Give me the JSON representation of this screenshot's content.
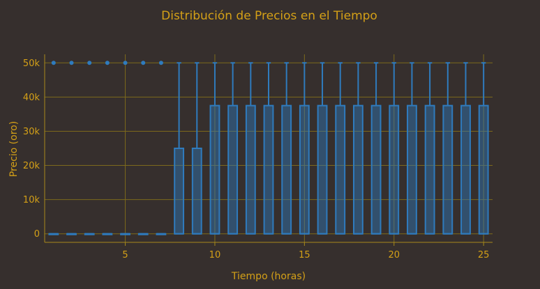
{
  "chart_data": {
    "type": "box",
    "title": "Distribución de Precios en el Tiempo",
    "xlabel": "Tiempo (horas)",
    "ylabel": "Precio (oro)",
    "xlim": [
      0.5,
      25.5
    ],
    "ylim": [
      -2500,
      52500
    ],
    "x_ticks": [
      {
        "value": 5,
        "label": "5"
      },
      {
        "value": 10,
        "label": "10"
      },
      {
        "value": 15,
        "label": "15"
      },
      {
        "value": 20,
        "label": "20"
      },
      {
        "value": 25,
        "label": "25"
      }
    ],
    "y_ticks": [
      {
        "value": 0,
        "label": "0"
      },
      {
        "value": 10000,
        "label": "10k"
      },
      {
        "value": 20000,
        "label": "20k"
      },
      {
        "value": 30000,
        "label": "30k"
      },
      {
        "value": 40000,
        "label": "40k"
      },
      {
        "value": 50000,
        "label": "50k"
      }
    ],
    "grid": true,
    "colors": {
      "background": "#362f2d",
      "text": "#d4a017",
      "grid": "#7d6a1c",
      "box_stroke": "#2f7bbd",
      "box_fill": "#2f7bbd"
    },
    "boxes": [
      {
        "x": 1,
        "min": 0,
        "q1": 0,
        "median": 0,
        "q3": 0,
        "max": 0,
        "outliers": [
          50000
        ]
      },
      {
        "x": 2,
        "min": 0,
        "q1": 0,
        "median": 0,
        "q3": 0,
        "max": 0,
        "outliers": [
          50000
        ]
      },
      {
        "x": 3,
        "min": 0,
        "q1": 0,
        "median": 0,
        "q3": 0,
        "max": 0,
        "outliers": [
          50000
        ]
      },
      {
        "x": 4,
        "min": 0,
        "q1": 0,
        "median": 0,
        "q3": 0,
        "max": 0,
        "outliers": [
          50000
        ]
      },
      {
        "x": 5,
        "min": 0,
        "q1": 0,
        "median": 0,
        "q3": 0,
        "max": 0,
        "outliers": [
          50000
        ]
      },
      {
        "x": 6,
        "min": 0,
        "q1": 0,
        "median": 0,
        "q3": 0,
        "max": 0,
        "outliers": [
          50000
        ]
      },
      {
        "x": 7,
        "min": 0,
        "q1": 0,
        "median": 0,
        "q3": 0,
        "max": 0,
        "outliers": [
          50000
        ]
      },
      {
        "x": 8,
        "min": 0,
        "q1": 0,
        "median": 0,
        "q3": 25000,
        "max": 50000,
        "outliers": []
      },
      {
        "x": 9,
        "min": 0,
        "q1": 0,
        "median": 0,
        "q3": 25000,
        "max": 50000,
        "outliers": []
      },
      {
        "x": 10,
        "min": 0,
        "q1": 0,
        "median": 0,
        "q3": 37500,
        "max": 50000,
        "outliers": []
      },
      {
        "x": 11,
        "min": 0,
        "q1": 0,
        "median": 0,
        "q3": 37500,
        "max": 50000,
        "outliers": []
      },
      {
        "x": 12,
        "min": 0,
        "q1": 0,
        "median": 0,
        "q3": 37500,
        "max": 50000,
        "outliers": []
      },
      {
        "x": 13,
        "min": 0,
        "q1": 0,
        "median": 0,
        "q3": 37500,
        "max": 50000,
        "outliers": []
      },
      {
        "x": 14,
        "min": 0,
        "q1": 0,
        "median": 0,
        "q3": 37500,
        "max": 50000,
        "outliers": []
      },
      {
        "x": 15,
        "min": 0,
        "q1": 0,
        "median": 0,
        "q3": 37500,
        "max": 50000,
        "outliers": []
      },
      {
        "x": 16,
        "min": 0,
        "q1": 0,
        "median": 0,
        "q3": 37500,
        "max": 50000,
        "outliers": []
      },
      {
        "x": 17,
        "min": 0,
        "q1": 0,
        "median": 0,
        "q3": 37500,
        "max": 50000,
        "outliers": []
      },
      {
        "x": 18,
        "min": 0,
        "q1": 0,
        "median": 0,
        "q3": 37500,
        "max": 50000,
        "outliers": []
      },
      {
        "x": 19,
        "min": 0,
        "q1": 0,
        "median": 0,
        "q3": 37500,
        "max": 50000,
        "outliers": []
      },
      {
        "x": 20,
        "min": 0,
        "q1": 0,
        "median": 0,
        "q3": 37500,
        "max": 50000,
        "outliers": []
      },
      {
        "x": 21,
        "min": 0,
        "q1": 0,
        "median": 0,
        "q3": 37500,
        "max": 50000,
        "outliers": []
      },
      {
        "x": 22,
        "min": 0,
        "q1": 0,
        "median": 0,
        "q3": 37500,
        "max": 50000,
        "outliers": []
      },
      {
        "x": 23,
        "min": 0,
        "q1": 0,
        "median": 0,
        "q3": 37500,
        "max": 50000,
        "outliers": []
      },
      {
        "x": 24,
        "min": 0,
        "q1": 0,
        "median": 0,
        "q3": 37500,
        "max": 50000,
        "outliers": []
      },
      {
        "x": 25,
        "min": 0,
        "q1": 0,
        "median": 0,
        "q3": 37500,
        "max": 50000,
        "outliers": []
      }
    ]
  }
}
